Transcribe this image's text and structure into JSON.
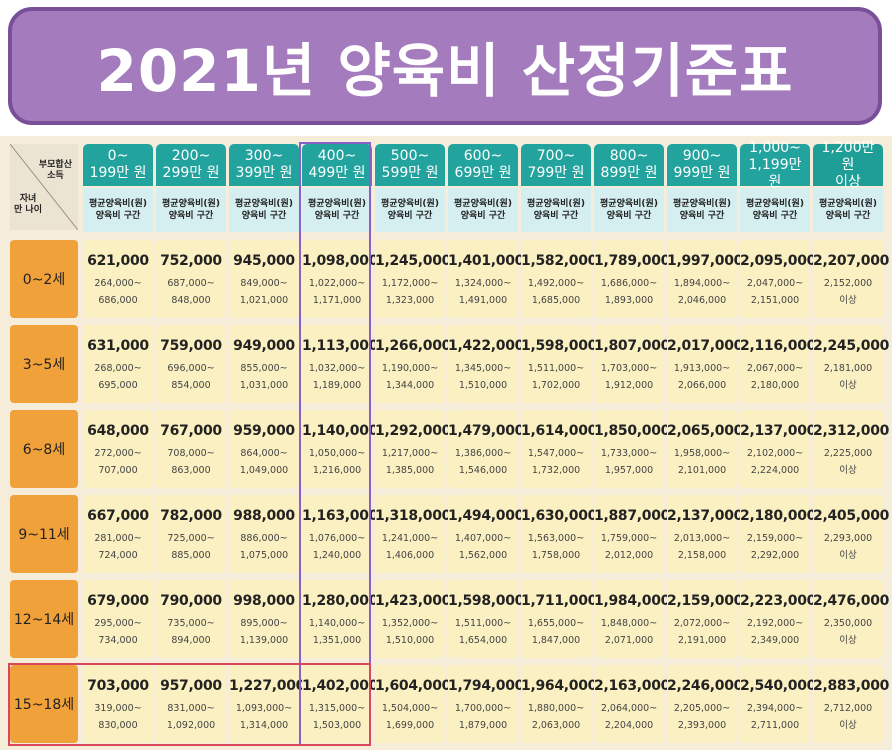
{
  "title": "2021년 양육비 산정기준표",
  "corner": {
    "income_label": [
      "부모합산",
      "소득"
    ],
    "age_label": [
      "자녀",
      "만 나이"
    ]
  },
  "columns": [
    {
      "range": [
        "0~",
        "199만 원"
      ],
      "sub": [
        "평균양육비(원)",
        "양육비 구간"
      ]
    },
    {
      "range": [
        "200~",
        "299만 원"
      ],
      "sub": [
        "평균양육비(원)",
        "양육비 구간"
      ]
    },
    {
      "range": [
        "300~",
        "399만 원"
      ],
      "sub": [
        "평균양육비(원)",
        "양육비 구간"
      ]
    },
    {
      "range": [
        "400~",
        "499만 원"
      ],
      "sub": [
        "평균양육비(원)",
        "양육비 구간"
      ]
    },
    {
      "range": [
        "500~",
        "599만 원"
      ],
      "sub": [
        "평균양육비(원)",
        "양육비 구간"
      ]
    },
    {
      "range": [
        "600~",
        "699만 원"
      ],
      "sub": [
        "평균양육비(원)",
        "양육비 구간"
      ]
    },
    {
      "range": [
        "700~",
        "799만 원"
      ],
      "sub": [
        "평균양육비(원)",
        "양육비 구간"
      ]
    },
    {
      "range": [
        "800~",
        "899만 원"
      ],
      "sub": [
        "평균양육비(원)",
        "양육비 구간"
      ]
    },
    {
      "range": [
        "900~",
        "999만 원"
      ],
      "sub": [
        "평균양육비(원)",
        "양육비 구간"
      ]
    },
    {
      "range": [
        "1,000~",
        "1,199만 원"
      ],
      "sub": [
        "평균양육비(원)",
        "양육비 구간"
      ]
    },
    {
      "range": [
        "1,200만 원",
        "이상"
      ],
      "sub": [
        "평균양육비(원)",
        "양육비 구간"
      ]
    }
  ],
  "rows": [
    {
      "age": "0~2세",
      "cells": [
        [
          "621,000",
          "264,000~",
          "686,000"
        ],
        [
          "752,000",
          "687,000~",
          "848,000"
        ],
        [
          "945,000",
          "849,000~",
          "1,021,000"
        ],
        [
          "1,098,000",
          "1,022,000~",
          "1,171,000"
        ],
        [
          "1,245,000",
          "1,172,000~",
          "1,323,000"
        ],
        [
          "1,401,000",
          "1,324,000~",
          "1,491,000"
        ],
        [
          "1,582,000",
          "1,492,000~",
          "1,685,000"
        ],
        [
          "1,789,000",
          "1,686,000~",
          "1,893,000"
        ],
        [
          "1,997,000",
          "1,894,000~",
          "2,046,000"
        ],
        [
          "2,095,000",
          "2,047,000~",
          "2,151,000"
        ],
        [
          "2,207,000",
          "2,152,000",
          "이상"
        ]
      ]
    },
    {
      "age": "3~5세",
      "cells": [
        [
          "631,000",
          "268,000~",
          "695,000"
        ],
        [
          "759,000",
          "696,000~",
          "854,000"
        ],
        [
          "949,000",
          "855,000~",
          "1,031,000"
        ],
        [
          "1,113,000",
          "1,032,000~",
          "1,189,000"
        ],
        [
          "1,266,000",
          "1,190,000~",
          "1,344,000"
        ],
        [
          "1,422,000",
          "1,345,000~",
          "1,510,000"
        ],
        [
          "1,598,000",
          "1,511,000~",
          "1,702,000"
        ],
        [
          "1,807,000",
          "1,703,000~",
          "1,912,000"
        ],
        [
          "2,017,000",
          "1,913,000~",
          "2,066,000"
        ],
        [
          "2,116,000",
          "2,067,000~",
          "2,180,000"
        ],
        [
          "2,245,000",
          "2,181,000",
          "이상"
        ]
      ]
    },
    {
      "age": "6~8세",
      "cells": [
        [
          "648,000",
          "272,000~",
          "707,000"
        ],
        [
          "767,000",
          "708,000~",
          "863,000"
        ],
        [
          "959,000",
          "864,000~",
          "1,049,000"
        ],
        [
          "1,140,000",
          "1,050,000~",
          "1,216,000"
        ],
        [
          "1,292,000",
          "1,217,000~",
          "1,385,000"
        ],
        [
          "1,479,000",
          "1,386,000~",
          "1,546,000"
        ],
        [
          "1,614,000",
          "1,547,000~",
          "1,732,000"
        ],
        [
          "1,850,000",
          "1,733,000~",
          "1,957,000"
        ],
        [
          "2,065,000",
          "1,958,000~",
          "2,101,000"
        ],
        [
          "2,137,000",
          "2,102,000~",
          "2,224,000"
        ],
        [
          "2,312,000",
          "2,225,000",
          "이상"
        ]
      ]
    },
    {
      "age": "9~11세",
      "cells": [
        [
          "667,000",
          "281,000~",
          "724,000"
        ],
        [
          "782,000",
          "725,000~",
          "885,000"
        ],
        [
          "988,000",
          "886,000~",
          "1,075,000"
        ],
        [
          "1,163,000",
          "1,076,000~",
          "1,240,000"
        ],
        [
          "1,318,000",
          "1,241,000~",
          "1,406,000"
        ],
        [
          "1,494,000",
          "1,407,000~",
          "1,562,000"
        ],
        [
          "1,630,000",
          "1,563,000~",
          "1,758,000"
        ],
        [
          "1,887,000",
          "1,759,000~",
          "2,012,000"
        ],
        [
          "2,137,000",
          "2,013,000~",
          "2,158,000"
        ],
        [
          "2,180,000",
          "2,159,000~",
          "2,292,000"
        ],
        [
          "2,405,000",
          "2,293,000",
          "이상"
        ]
      ]
    },
    {
      "age": "12~14세",
      "cells": [
        [
          "679,000",
          "295,000~",
          "734,000"
        ],
        [
          "790,000",
          "735,000~",
          "894,000"
        ],
        [
          "998,000",
          "895,000~",
          "1,139,000"
        ],
        [
          "1,280,000",
          "1,140,000~",
          "1,351,000"
        ],
        [
          "1,423,000",
          "1,352,000~",
          "1,510,000"
        ],
        [
          "1,598,000",
          "1,511,000~",
          "1,654,000"
        ],
        [
          "1,711,000",
          "1,655,000~",
          "1,847,000"
        ],
        [
          "1,984,000",
          "1,848,000~",
          "2,071,000"
        ],
        [
          "2,159,000",
          "2,072,000~",
          "2,191,000"
        ],
        [
          "2,223,000",
          "2,192,000~",
          "2,349,000"
        ],
        [
          "2,476,000",
          "2,350,000",
          "이상"
        ]
      ]
    },
    {
      "age": "15~18세",
      "cells": [
        [
          "703,000",
          "319,000~",
          "830,000"
        ],
        [
          "957,000",
          "831,000~",
          "1,092,000"
        ],
        [
          "1,227,000",
          "1,093,000~",
          "1,314,000"
        ],
        [
          "1,402,000",
          "1,315,000~",
          "1,503,000"
        ],
        [
          "1,604,000",
          "1,504,000~",
          "1,699,000"
        ],
        [
          "1,794,000",
          "1,700,000~",
          "1,879,000"
        ],
        [
          "1,964,000",
          "1,880,000~",
          "2,063,000"
        ],
        [
          "2,163,000",
          "2,064,000~",
          "2,204,000"
        ],
        [
          "2,246,000",
          "2,205,000~",
          "2,393,000"
        ],
        [
          "2,540,000",
          "2,394,000~",
          "2,711,000"
        ],
        [
          "2,883,000",
          "2,712,000",
          "이상"
        ]
      ]
    }
  ],
  "colors": {
    "banner": "#a47cbd",
    "banner_border": "#7a4f99",
    "header": "#23a39e",
    "subheader": "#d5eef0",
    "age_label": "#f0a13a",
    "cell": "#fbf0c2",
    "highlight_column": "#8a5fc7",
    "highlight_row": "#d9475b"
  }
}
